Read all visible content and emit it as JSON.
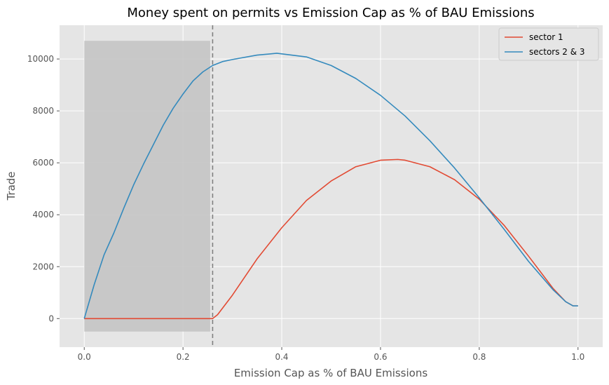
{
  "chart_data": {
    "type": "line",
    "title": "Money spent on permits vs Emission Cap as % of BAU Emissions",
    "xlabel": "Emission Cap as % of BAU Emissions",
    "ylabel": "Trade",
    "xlim": [
      -0.05,
      1.05
    ],
    "ylim": [
      -1100,
      11300
    ],
    "x_ticks": [
      0.0,
      0.2,
      0.4,
      0.6,
      0.8,
      1.0
    ],
    "x_tick_labels": [
      "0.0",
      "0.2",
      "0.4",
      "0.6",
      "0.8",
      "1.0"
    ],
    "y_ticks": [
      0,
      2000,
      4000,
      6000,
      8000,
      10000
    ],
    "y_tick_labels": [
      "0",
      "2000",
      "4000",
      "6000",
      "8000",
      "10000"
    ],
    "grid": true,
    "legend_position": "top-right",
    "shaded_region": {
      "x": [
        0.0,
        0.255
      ],
      "y": [
        -500,
        10700
      ],
      "color": "#c4c4c4"
    },
    "vline": {
      "x": 0.26,
      "style": "dashed",
      "color": "#808080"
    },
    "colors": {
      "plot_background": "#e5e5e5",
      "grid": "#ffffff",
      "sector1": "#e24a33",
      "sectors23": "#348abd"
    },
    "series": [
      {
        "name": "sector 1",
        "color": "#e24a33",
        "x": [
          0.0,
          0.05,
          0.1,
          0.15,
          0.2,
          0.25,
          0.26,
          0.27,
          0.3,
          0.35,
          0.4,
          0.45,
          0.5,
          0.55,
          0.6,
          0.635,
          0.65,
          0.7,
          0.75,
          0.8,
          0.85,
          0.9,
          0.95,
          0.975,
          0.99,
          1.0
        ],
        "values": [
          0,
          0,
          0,
          0,
          0,
          0,
          0,
          150,
          900,
          2300,
          3500,
          4550,
          5300,
          5850,
          6100,
          6130,
          6100,
          5850,
          5350,
          4600,
          3600,
          2400,
          1150,
          650,
          490,
          490
        ]
      },
      {
        "name": "sectors 2 & 3",
        "color": "#348abd",
        "x": [
          0.0,
          0.02,
          0.04,
          0.06,
          0.08,
          0.1,
          0.12,
          0.14,
          0.16,
          0.18,
          0.2,
          0.22,
          0.24,
          0.26,
          0.28,
          0.3,
          0.35,
          0.39,
          0.45,
          0.5,
          0.55,
          0.6,
          0.65,
          0.7,
          0.75,
          0.8,
          0.85,
          0.9,
          0.95,
          0.975,
          0.99,
          1.0
        ],
        "values": [
          0,
          1300,
          2450,
          3300,
          4250,
          5150,
          5950,
          6700,
          7450,
          8100,
          8650,
          9150,
          9500,
          9750,
          9900,
          9980,
          10150,
          10220,
          10080,
          9750,
          9250,
          8600,
          7800,
          6850,
          5800,
          4650,
          3450,
          2200,
          1100,
          650,
          490,
          490
        ]
      }
    ]
  }
}
